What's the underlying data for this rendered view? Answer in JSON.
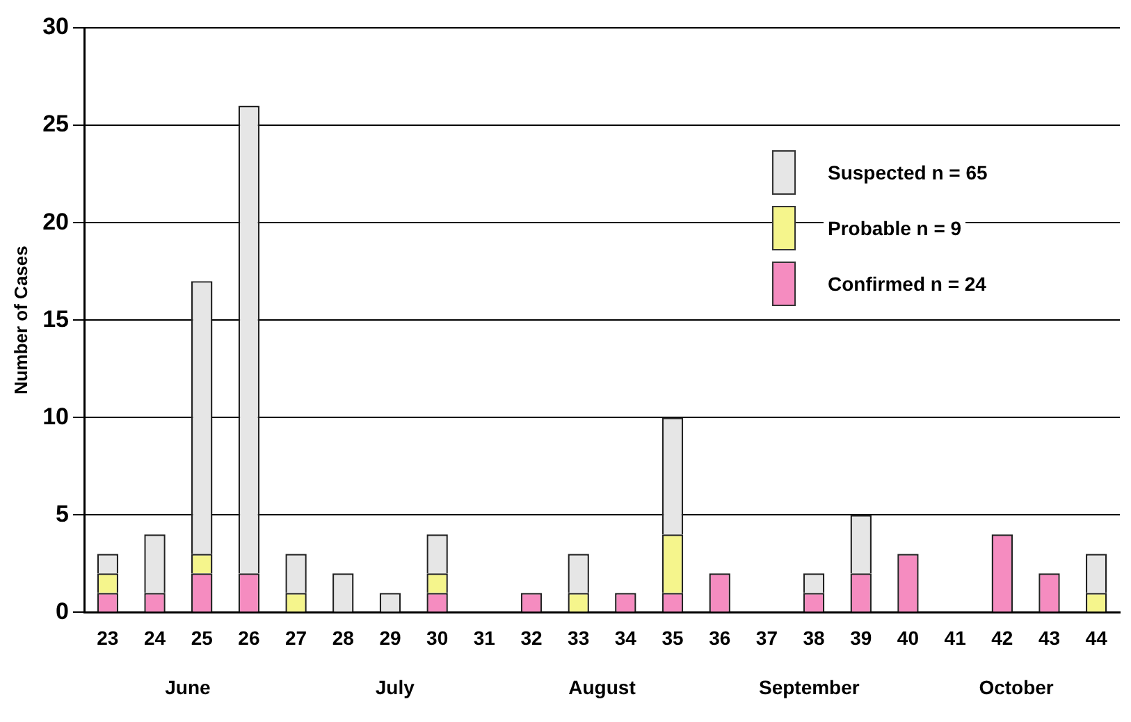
{
  "chart_data": {
    "type": "bar",
    "stacked": true,
    "ylabel": "Number of Cases",
    "categories": [
      "23",
      "24",
      "25",
      "26",
      "27",
      "28",
      "29",
      "30",
      "31",
      "32",
      "33",
      "34",
      "35",
      "36",
      "37",
      "38",
      "39",
      "40",
      "41",
      "42",
      "43",
      "44"
    ],
    "series": [
      {
        "name": "Confirmed n = 24",
        "color": "#f58cc0",
        "values": [
          1,
          1,
          2,
          2,
          0,
          0,
          0,
          1,
          0,
          1,
          0,
          1,
          1,
          2,
          0,
          1,
          2,
          3,
          0,
          4,
          2,
          0
        ]
      },
      {
        "name": "Probable n = 9",
        "color": "#f5f58c",
        "values": [
          1,
          0,
          1,
          0,
          1,
          0,
          0,
          1,
          0,
          0,
          1,
          0,
          3,
          0,
          0,
          0,
          0,
          0,
          0,
          0,
          0,
          1
        ]
      },
      {
        "name": "Suspected n = 65",
        "color": "#e6e6e6",
        "values": [
          1,
          3,
          14,
          24,
          2,
          2,
          1,
          2,
          0,
          0,
          2,
          0,
          6,
          0,
          0,
          1,
          3,
          0,
          0,
          0,
          0,
          2
        ]
      }
    ],
    "ylim": [
      0,
      30
    ],
    "yticks": [
      0,
      5,
      10,
      15,
      20,
      25,
      30
    ],
    "grid": "y",
    "legend": "top right",
    "annotations": [
      "June",
      "July",
      "August",
      "September",
      "October"
    ]
  }
}
